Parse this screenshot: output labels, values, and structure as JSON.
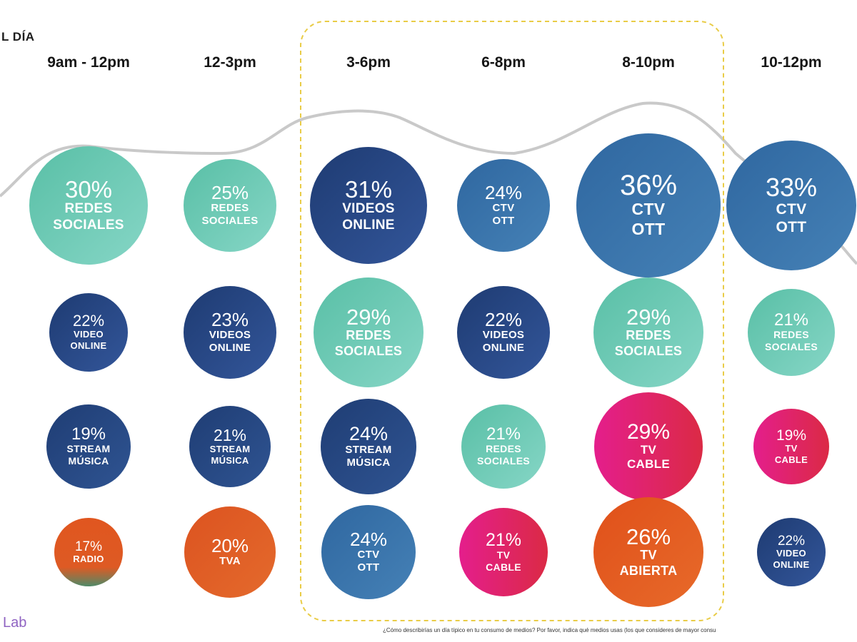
{
  "header": {
    "title": "L DÍA"
  },
  "time_slots": [
    {
      "label": "9am - 12pm",
      "bubbles": [
        {
          "pct": "30%",
          "lines": [
            "REDES",
            "SOCIALES"
          ],
          "category": "redes"
        },
        {
          "pct": "22%",
          "lines": [
            "VIDEO",
            "ONLINE"
          ],
          "category": "video"
        },
        {
          "pct": "19%",
          "lines": [
            "STREAM",
            "MÚSICA"
          ],
          "category": "stream"
        },
        {
          "pct": "17%",
          "lines": [
            "RADIO"
          ],
          "category": "radio"
        }
      ]
    },
    {
      "label": "12-3pm",
      "bubbles": [
        {
          "pct": "25%",
          "lines": [
            "REDES",
            "SOCIALES"
          ],
          "category": "redes"
        },
        {
          "pct": "23%",
          "lines": [
            "VIDEOS",
            "ONLINE"
          ],
          "category": "video"
        },
        {
          "pct": "21%",
          "lines": [
            "STREAM",
            "MÚSICA"
          ],
          "category": "stream"
        },
        {
          "pct": "20%",
          "lines": [
            "TVA"
          ],
          "category": "tva"
        }
      ]
    },
    {
      "label": "3-6pm",
      "bubbles": [
        {
          "pct": "31%",
          "lines": [
            "VIDEOS",
            "ONLINE"
          ],
          "category": "video"
        },
        {
          "pct": "29%",
          "lines": [
            "REDES",
            "SOCIALES"
          ],
          "category": "redes"
        },
        {
          "pct": "24%",
          "lines": [
            "STREAM",
            "MÚSICA"
          ],
          "category": "stream"
        },
        {
          "pct": "24%",
          "lines": [
            "CTV",
            "OTT"
          ],
          "category": "ctv"
        }
      ]
    },
    {
      "label": "6-8pm",
      "bubbles": [
        {
          "pct": "24%",
          "lines": [
            "CTV",
            "OTT"
          ],
          "category": "ctv"
        },
        {
          "pct": "22%",
          "lines": [
            "VIDEOS",
            "ONLINE"
          ],
          "category": "video"
        },
        {
          "pct": "21%",
          "lines": [
            "REDES",
            "SOCIALES"
          ],
          "category": "redes"
        },
        {
          "pct": "21%",
          "lines": [
            "TV",
            "CABLE"
          ],
          "category": "cable"
        }
      ]
    },
    {
      "label": "8-10pm",
      "bubbles": [
        {
          "pct": "36%",
          "lines": [
            "CTV",
            "OTT"
          ],
          "category": "ctv"
        },
        {
          "pct": "29%",
          "lines": [
            "REDES",
            "SOCIALES"
          ],
          "category": "redes"
        },
        {
          "pct": "29%",
          "lines": [
            "TV",
            "CABLE"
          ],
          "category": "cable"
        },
        {
          "pct": "26%",
          "lines": [
            "TV",
            "ABIERTA"
          ],
          "category": "abierta"
        }
      ]
    },
    {
      "label": "10-12pm",
      "bubbles": [
        {
          "pct": "33%",
          "lines": [
            "CTV",
            "OTT"
          ],
          "category": "ctv"
        },
        {
          "pct": "21%",
          "lines": [
            "REDES",
            "SOCIALES"
          ],
          "category": "redes"
        },
        {
          "pct": "19%",
          "lines": [
            "TV",
            "CABLE"
          ],
          "category": "cable"
        },
        {
          "pct": "22%",
          "lines": [
            "VIDEO",
            "ONLINE"
          ],
          "category": "video"
        }
      ]
    }
  ],
  "colors": {
    "redes": "#6fcab4",
    "video": "#26467f",
    "stream": "#24457c",
    "ctv": "#3b74aa",
    "cable": "#e0206f",
    "abierta": "#e2591f",
    "tva": "#df5a22",
    "radio": "#d95627",
    "highlight_border": "#e9cc47",
    "curve": "#c9c9c9"
  },
  "brand": {
    "text": "Lab"
  },
  "footnote": {
    "text": "¿Cómo describirías un día típico en tu consumo de medios? Por favor, indica qué medios usas (los que consideres de mayor consu"
  }
}
